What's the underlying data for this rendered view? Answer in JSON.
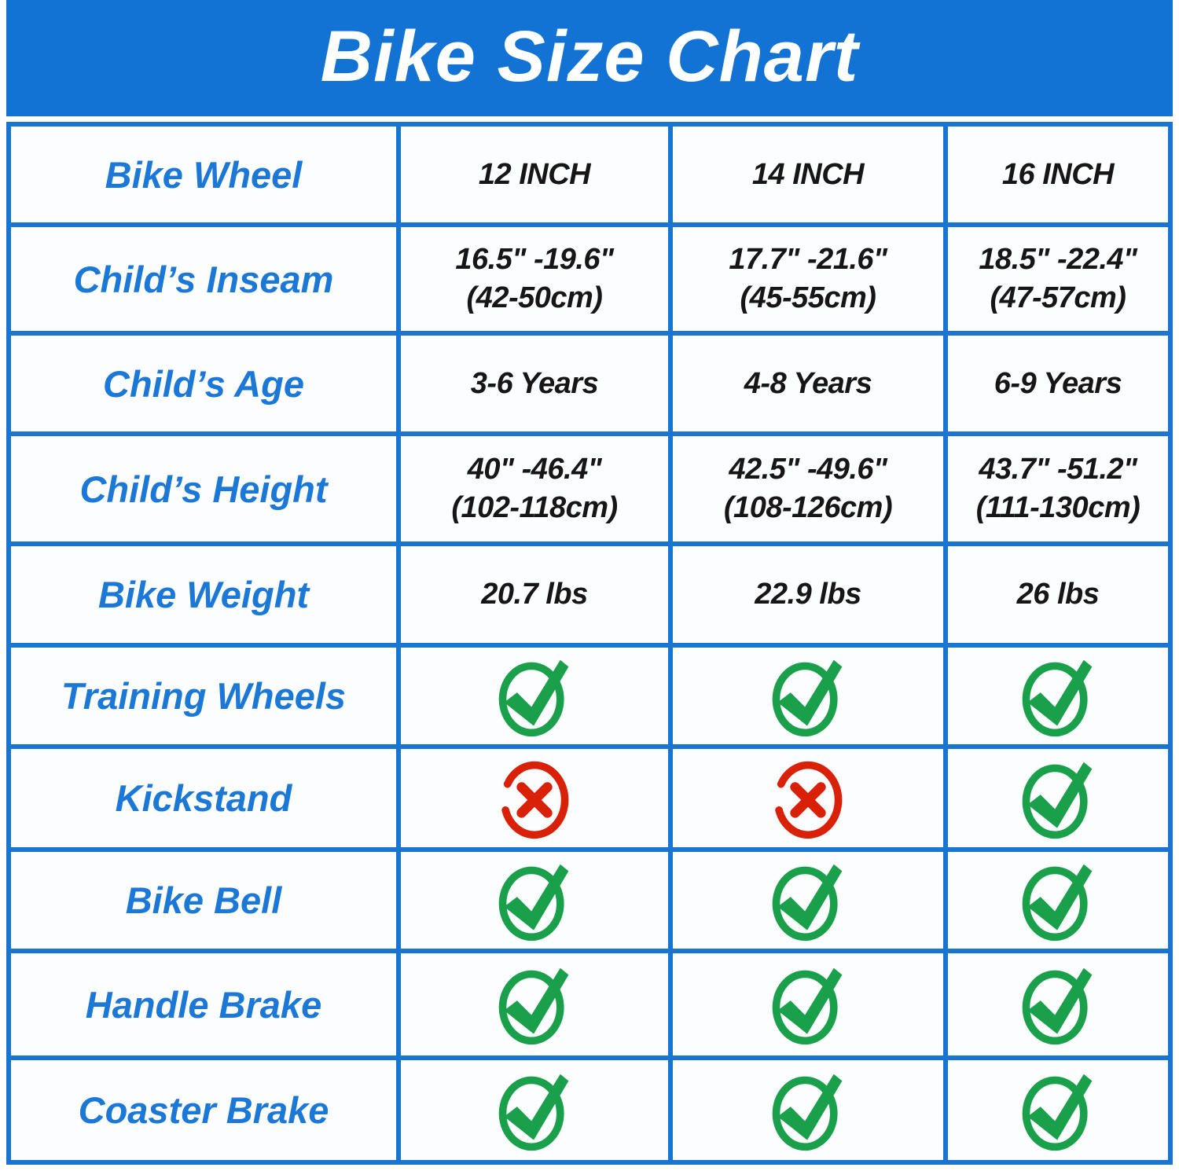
{
  "title": "Bike Size Chart",
  "colors": {
    "banner_blue": "#1373d4",
    "border_blue": "#1a75d2",
    "label_blue": "#1c78d6",
    "value_black": "#161616",
    "cell_bg": "#fcfdfe",
    "green": "#1aa04a",
    "red": "#d92108"
  },
  "table": {
    "columns": [
      "12 INCH",
      "14 INCH",
      "16 INCH"
    ],
    "rows": [
      {
        "label": "Bike Wheel",
        "type": "text",
        "values": [
          "12 INCH",
          "14 INCH",
          "16 INCH"
        ]
      },
      {
        "label": "Child’s Inseam",
        "type": "text2",
        "values": [
          [
            "16.5\" -19.6\"",
            "(42-50cm)"
          ],
          [
            "17.7\" -21.6\"",
            "(45-55cm)"
          ],
          [
            "18.5\" -22.4\"",
            "(47-57cm)"
          ]
        ]
      },
      {
        "label": "Child’s Age",
        "type": "text",
        "values": [
          "3-6 Years",
          "4-8 Years",
          "6-9 Years"
        ]
      },
      {
        "label": "Child’s Height",
        "type": "text2",
        "values": [
          [
            "40\" -46.4\"",
            "(102-118cm)"
          ],
          [
            "42.5\" -49.6\"",
            "(108-126cm)"
          ],
          [
            "43.7\" -51.2\"",
            "(111-130cm)"
          ]
        ]
      },
      {
        "label": "Bike Weight",
        "type": "text",
        "values": [
          "20.7 lbs",
          "22.9 lbs",
          "26 lbs"
        ]
      },
      {
        "label": "Training Wheels",
        "type": "icon",
        "values": [
          "check",
          "check",
          "check"
        ]
      },
      {
        "label": "Kickstand",
        "type": "icon",
        "values": [
          "cross",
          "cross",
          "check"
        ]
      },
      {
        "label": "Bike Bell",
        "type": "icon",
        "values": [
          "check",
          "check",
          "check"
        ]
      },
      {
        "label": "Handle Brake",
        "type": "icon",
        "values": [
          "check",
          "check",
          "check"
        ]
      },
      {
        "label": "Coaster Brake",
        "type": "icon",
        "values": [
          "check",
          "check",
          "check"
        ]
      }
    ]
  }
}
